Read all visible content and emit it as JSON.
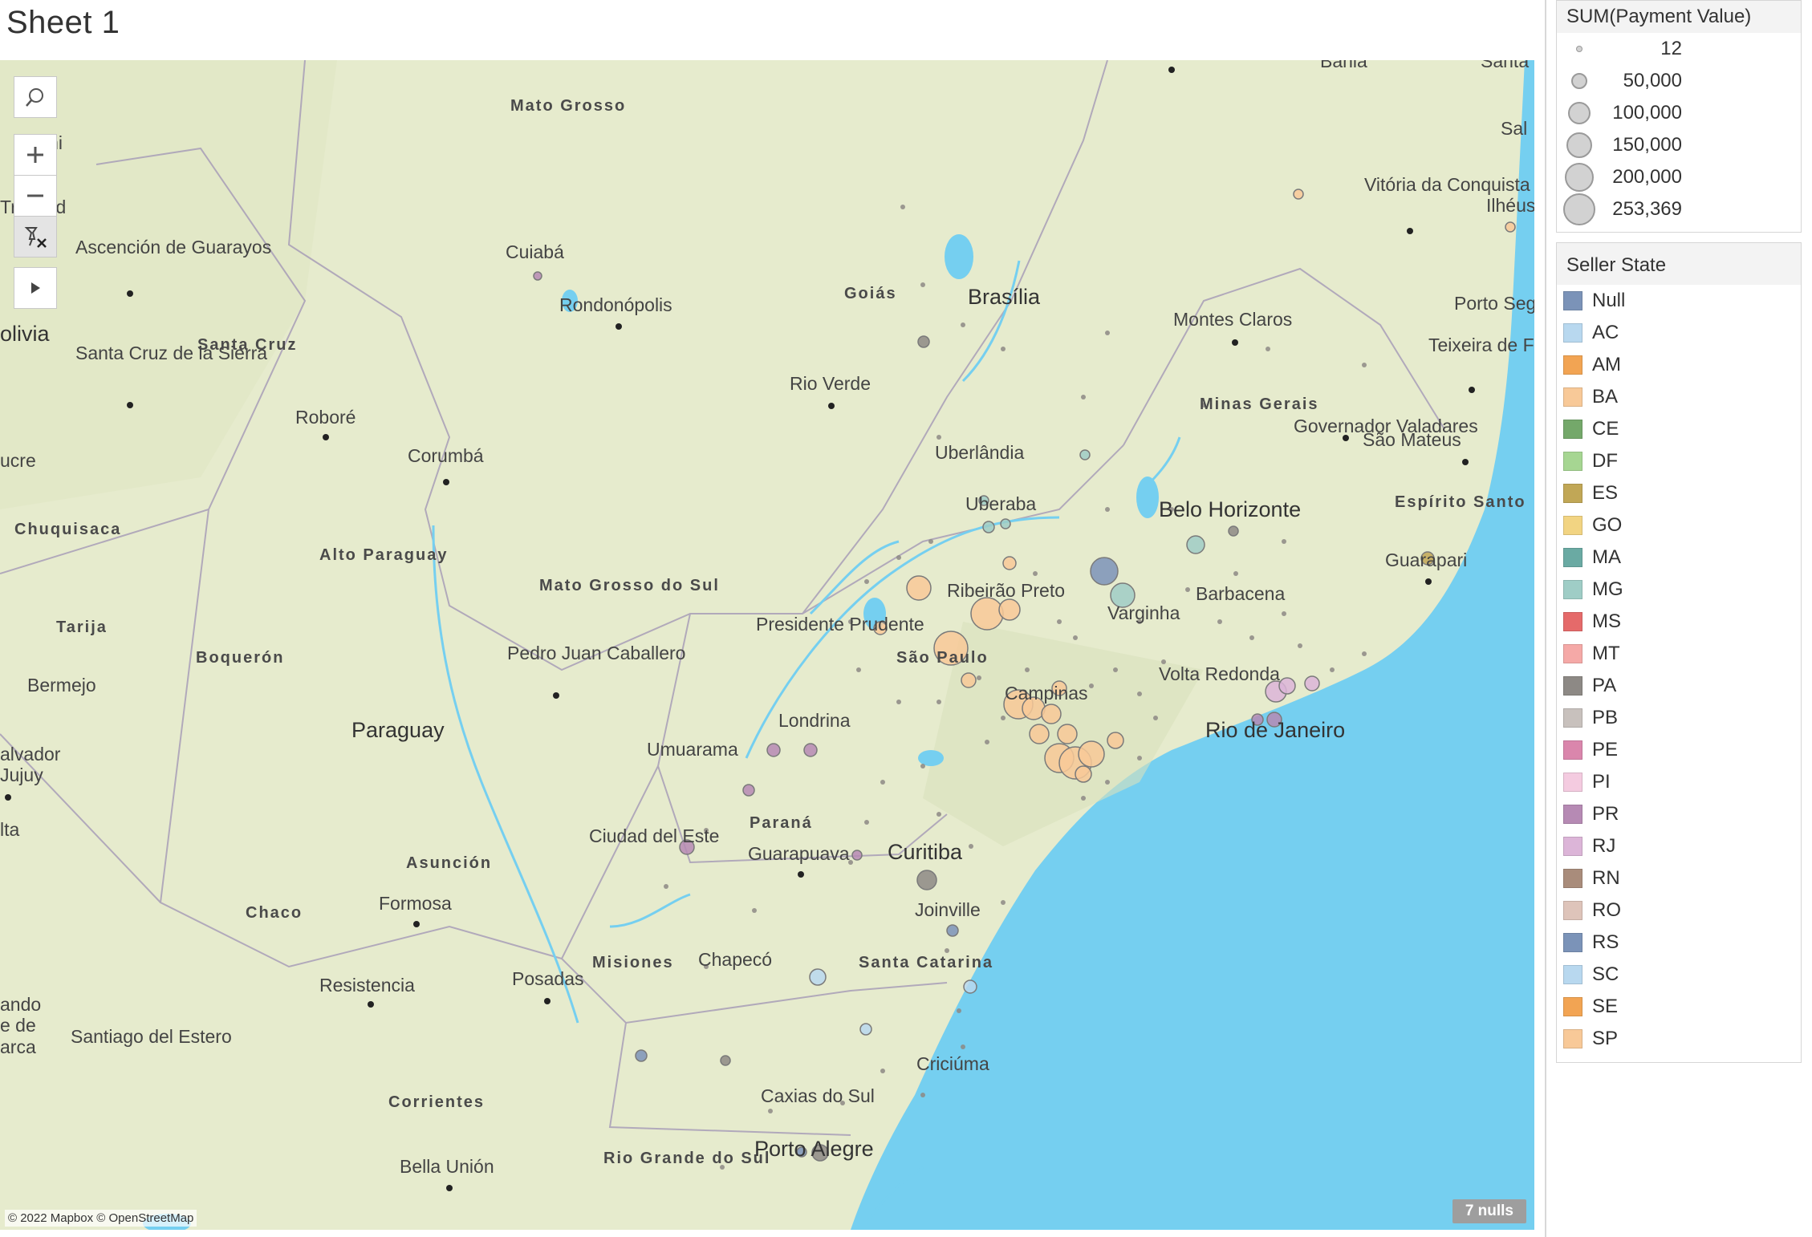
{
  "sheet_title": "Sheet 1",
  "map": {
    "attribution": "© 2022 Mapbox © OpenStreetMap",
    "nulls_badge": "7 nulls",
    "place_labels": [
      "Mato Grosso",
      "Cuiabá",
      "Rondonópolis",
      "Goiás",
      "Brasília",
      "Rio Verde",
      "Uberlândia",
      "Uberaba",
      "Montes Claros",
      "Minas Gerais",
      "Belo Horizonte",
      "Governador Valadares",
      "São Mateus",
      "Espírito Santo",
      "Guarapari",
      "Teixeira de Freitas",
      "Porto Seg",
      "Vitória da Conquista",
      "Ilhéus",
      "Sal",
      "Bahia",
      "Santa",
      "Varginha",
      "Barbacena",
      "Ribeirão Preto",
      "Presidente Prudente",
      "São Paulo",
      "Campinas",
      "Volta Redonda",
      "Rio de Janeiro",
      "Mato Grosso do Sul",
      "Pedro Juan Caballero",
      "Londrina",
      "Umuarama",
      "Paraná",
      "Guarapuava",
      "Curitiba",
      "Ciudad del Este",
      "Joinville",
      "Santa Catarina",
      "Chapecó",
      "Misiones",
      "Posadas",
      "Criciúma",
      "Caxias do Sul",
      "Porto Alegre",
      "Rio Grande do Sul",
      "Bella Unión",
      "Corrientes",
      "Resistencia",
      "Santiago del Estero",
      "Chaco",
      "Formosa",
      "Asunción",
      "Paraguay",
      "Boquerón",
      "Alto Paraguay",
      "Corumbá",
      "Roboré",
      "Santa Cruz de la Sierra",
      "Santa Cruz",
      "Ascención de Guarayos",
      "Trinidad",
      "Beni",
      "olivia",
      "ucre",
      "Chuquisaca",
      "Tarija",
      "Bermejo",
      "alvador Jujuy",
      "lta",
      "ando e de arca"
    ]
  },
  "size_legend": {
    "title": "SUM(Payment Value)",
    "entries": [
      "12",
      "50,000",
      "100,000",
      "150,000",
      "200,000",
      "253,369"
    ]
  },
  "color_legend": {
    "title": "Seller State",
    "entries": [
      {
        "label": "Null",
        "color": "#7b93b8"
      },
      {
        "label": "AC",
        "color": "#b8d8ef"
      },
      {
        "label": "AM",
        "color": "#f2a453"
      },
      {
        "label": "BA",
        "color": "#f8c998"
      },
      {
        "label": "CE",
        "color": "#74a86a"
      },
      {
        "label": "DF",
        "color": "#a6d692"
      },
      {
        "label": "ES",
        "color": "#c1a756"
      },
      {
        "label": "GO",
        "color": "#f2d482"
      },
      {
        "label": "MA",
        "color": "#6aaaa3"
      },
      {
        "label": "MG",
        "color": "#9fcdc6"
      },
      {
        "label": "MS",
        "color": "#e56a6a"
      },
      {
        "label": "MT",
        "color": "#f5a9a7"
      },
      {
        "label": "PA",
        "color": "#8d8985"
      },
      {
        "label": "PB",
        "color": "#c8c1bd"
      },
      {
        "label": "PE",
        "color": "#da86ac"
      },
      {
        "label": "PI",
        "color": "#f4cbe0"
      },
      {
        "label": "PR",
        "color": "#b68ab4"
      },
      {
        "label": "RJ",
        "color": "#dcb5d8"
      },
      {
        "label": "RN",
        "color": "#a98c7b"
      },
      {
        "label": "RO",
        "color": "#dec4ba"
      },
      {
        "label": "RS",
        "color": "#7b93b8"
      },
      {
        "label": "SC",
        "color": "#b8d8ef"
      },
      {
        "label": "SE",
        "color": "#f2a453"
      },
      {
        "label": "SP",
        "color": "#f8c998"
      }
    ]
  }
}
